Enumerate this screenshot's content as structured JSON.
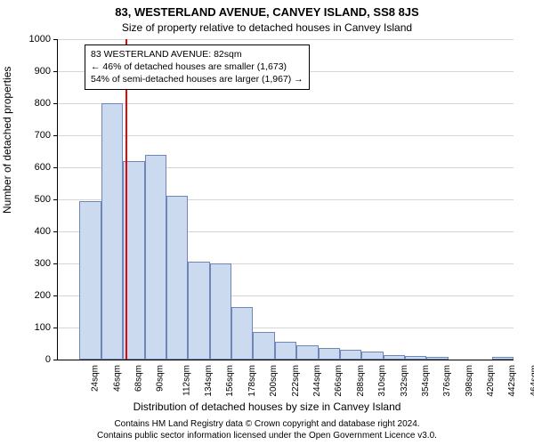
{
  "title": "83, WESTERLAND AVENUE, CANVEY ISLAND, SS8 8JS",
  "subtitle": "Size of property relative to detached houses in Canvey Island",
  "ylabel": "Number of detached properties",
  "xlabel": "Distribution of detached houses by size in Canvey Island",
  "footer_line1": "Contains HM Land Registry data © Crown copyright and database right 2024.",
  "footer_line2": "Contains public sector information licensed under the Open Government Licence v3.0.",
  "chart": {
    "type": "histogram",
    "background_color": "#ffffff",
    "grid_color": "#d6d6d6",
    "bar_fill": "#ccdaf0",
    "bar_border": "#6d87b8",
    "vline_color": "#e10808",
    "vline_x": 82,
    "ylim": [
      0,
      1000
    ],
    "ytick_step": 100,
    "xlim": [
      13,
      475
    ],
    "bin_width": 22,
    "yticks": [
      0,
      100,
      200,
      300,
      400,
      500,
      600,
      700,
      800,
      900,
      1000
    ],
    "xticks": [
      24,
      46,
      68,
      90,
      112,
      134,
      156,
      178,
      200,
      222,
      244,
      266,
      288,
      310,
      332,
      354,
      376,
      398,
      420,
      442,
      464
    ],
    "xtick_labels": [
      "24sqm",
      "46sqm",
      "68sqm",
      "90sqm",
      "112sqm",
      "134sqm",
      "156sqm",
      "178sqm",
      "200sqm",
      "222sqm",
      "244sqm",
      "266sqm",
      "288sqm",
      "310sqm",
      "332sqm",
      "354sqm",
      "376sqm",
      "398sqm",
      "420sqm",
      "442sqm",
      "464sqm"
    ],
    "bins": [
      {
        "x": 24,
        "count": 0
      },
      {
        "x": 46,
        "count": 495
      },
      {
        "x": 68,
        "count": 800
      },
      {
        "x": 90,
        "count": 620
      },
      {
        "x": 112,
        "count": 640
      },
      {
        "x": 134,
        "count": 510
      },
      {
        "x": 156,
        "count": 305
      },
      {
        "x": 178,
        "count": 300
      },
      {
        "x": 200,
        "count": 165
      },
      {
        "x": 222,
        "count": 85
      },
      {
        "x": 244,
        "count": 55
      },
      {
        "x": 266,
        "count": 45
      },
      {
        "x": 288,
        "count": 35
      },
      {
        "x": 310,
        "count": 30
      },
      {
        "x": 332,
        "count": 25
      },
      {
        "x": 354,
        "count": 15
      },
      {
        "x": 376,
        "count": 10
      },
      {
        "x": 398,
        "count": 8
      },
      {
        "x": 420,
        "count": 0
      },
      {
        "x": 442,
        "count": 0
      },
      {
        "x": 464,
        "count": 8
      }
    ]
  },
  "info_box": {
    "line1": "83 WESTERLAND AVENUE: 82sqm",
    "line2": "← 46% of detached houses are smaller (1,673)",
    "line3": "54% of semi-detached houses are larger (1,967) →"
  }
}
